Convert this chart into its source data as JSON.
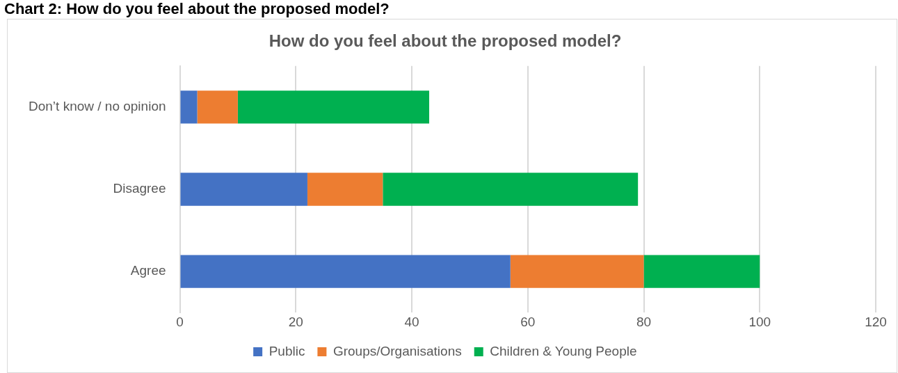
{
  "chart_data": {
    "type": "bar",
    "title": "How do you feel about the proposed model?",
    "annotations": [
      "Chart 2: How do you feel about the proposed model?"
    ],
    "categories": [
      "Don’t know / no opinion",
      "Disagree",
      "Agree"
    ],
    "orientation": "horizontal",
    "stacked": true,
    "series": [
      {
        "name": "Public",
        "color": "#4472c4",
        "values": [
          3,
          22,
          57
        ]
      },
      {
        "name": "Groups/Organisations",
        "color": "#ed7d31",
        "values": [
          7,
          13,
          23
        ]
      },
      {
        "name": "Children & Young People",
        "color": "#00b050",
        "values": [
          33,
          44,
          20
        ]
      }
    ],
    "xlim": [
      0,
      120
    ],
    "xticks": [
      0,
      20,
      40,
      60,
      80,
      100,
      120
    ],
    "grid": "x",
    "legend": "bottom"
  }
}
